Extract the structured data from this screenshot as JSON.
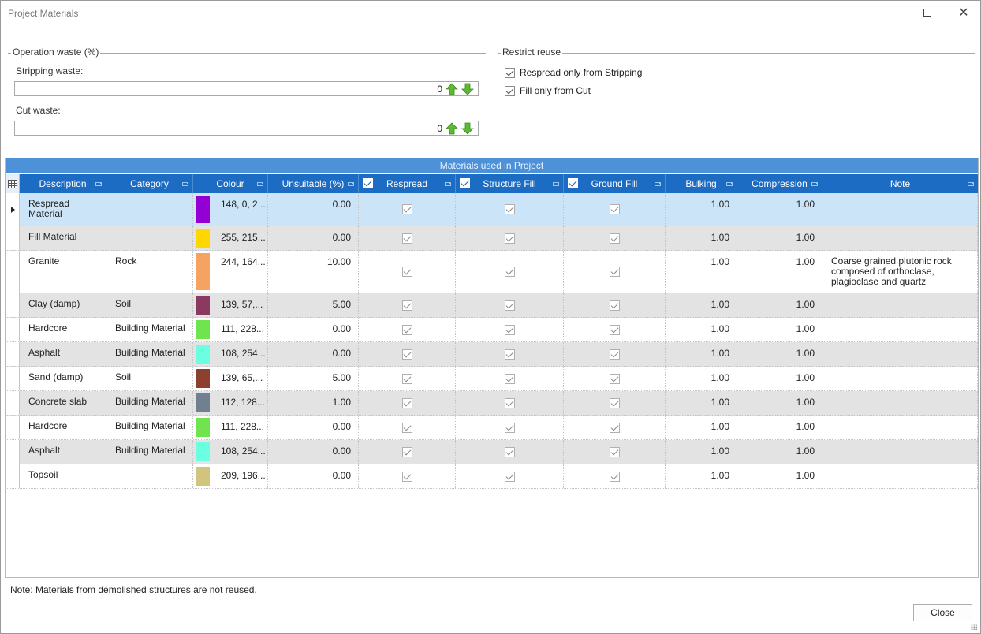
{
  "window": {
    "title": "Project Materials"
  },
  "operation_waste": {
    "title": "Operation waste (%)",
    "stripping": {
      "label": "Stripping waste:",
      "value": "0"
    },
    "cut": {
      "label": "Cut waste:",
      "value": "0"
    }
  },
  "restrict_reuse": {
    "title": "Restrict reuse",
    "respread_only": {
      "label": "Respread only from Stripping",
      "checked": true
    },
    "fill_only": {
      "label": "Fill only from Cut",
      "checked": true
    }
  },
  "grid": {
    "caption": "Materials used in Project",
    "columns": {
      "description": "Description",
      "category": "Category",
      "colour": "Colour",
      "unsuitable": "Unsuitable (%)",
      "respread": "Respread",
      "structure_fill": "Structure Fill",
      "ground_fill": "Ground Fill",
      "bulking": "Bulking",
      "compression": "Compression",
      "note": "Note"
    },
    "rows": [
      {
        "description": "Respread Material",
        "category": "",
        "colour_hex": "#9400d3",
        "colour_text": "148, 0, 2...",
        "unsuitable": "0.00",
        "bulking": "1.00",
        "compression": "1.00",
        "note": ""
      },
      {
        "description": "Fill Material",
        "category": "",
        "colour_hex": "#ffd700",
        "colour_text": "255, 215...",
        "unsuitable": "0.00",
        "bulking": "1.00",
        "compression": "1.00",
        "note": ""
      },
      {
        "description": "Granite",
        "category": "Rock",
        "colour_hex": "#f4a460",
        "colour_text": "244, 164...",
        "unsuitable": "10.00",
        "bulking": "1.00",
        "compression": "1.00",
        "note": "Coarse grained plutonic rock composed of orthoclase, plagioclase and quartz"
      },
      {
        "description": "Clay (damp)",
        "category": "Soil",
        "colour_hex": "#8b3960",
        "colour_text": "139, 57,...",
        "unsuitable": "5.00",
        "bulking": "1.00",
        "compression": "1.00",
        "note": ""
      },
      {
        "description": "Hardcore",
        "category": "Building Material",
        "colour_hex": "#6fe44e",
        "colour_text": "111, 228...",
        "unsuitable": "0.00",
        "bulking": "1.00",
        "compression": "1.00",
        "note": ""
      },
      {
        "description": "Asphalt",
        "category": "Building Material",
        "colour_hex": "#6cfee0",
        "colour_text": "108, 254...",
        "unsuitable": "0.00",
        "bulking": "1.00",
        "compression": "1.00",
        "note": ""
      },
      {
        "description": "Sand (damp)",
        "category": "Soil",
        "colour_hex": "#8b412d",
        "colour_text": "139, 65,...",
        "unsuitable": "5.00",
        "bulking": "1.00",
        "compression": "1.00",
        "note": ""
      },
      {
        "description": "Concrete slab",
        "category": "Building Material",
        "colour_hex": "#708090",
        "colour_text": "112, 128...",
        "unsuitable": "1.00",
        "bulking": "1.00",
        "compression": "1.00",
        "note": ""
      },
      {
        "description": "Hardcore",
        "category": "Building Material",
        "colour_hex": "#6fe44e",
        "colour_text": "111, 228...",
        "unsuitable": "0.00",
        "bulking": "1.00",
        "compression": "1.00",
        "note": ""
      },
      {
        "description": "Asphalt",
        "category": "Building Material",
        "colour_hex": "#6cfee0",
        "colour_text": "108, 254...",
        "unsuitable": "0.00",
        "bulking": "1.00",
        "compression": "1.00",
        "note": ""
      },
      {
        "description": "Topsoil",
        "category": "",
        "colour_hex": "#d1c47c",
        "colour_text": "209, 196...",
        "unsuitable": "0.00",
        "bulking": "1.00",
        "compression": "1.00",
        "note": ""
      }
    ]
  },
  "footer": {
    "note": "Note: Materials from demolished structures are not reused.",
    "close_label": "Close"
  },
  "colors": {
    "header_blue": "#1c6cc4",
    "caption_blue": "#4d91d8",
    "selected_row": "#cce4f7",
    "alt_row": "#e3e3e3",
    "spin_arrow_green": "#5fb832"
  },
  "icons": {
    "spin_up": "green-up-arrow-icon",
    "spin_down": "green-down-arrow-icon",
    "pin": "pin-icon",
    "grid_corner": "grid-icon",
    "row_indicator": "current-row-arrow-icon"
  }
}
